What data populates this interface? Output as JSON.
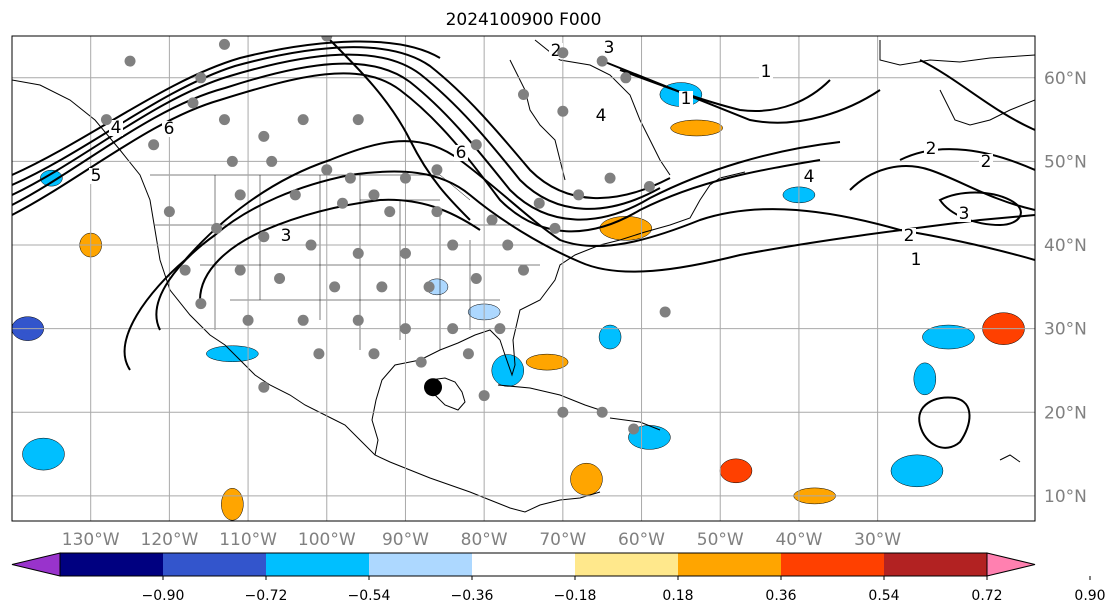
{
  "title": "2024100900 F000",
  "map": {
    "lon_range": [
      -140,
      -10
    ],
    "lat_range": [
      7,
      65
    ],
    "lon_ticks": [
      -130,
      -120,
      -110,
      -100,
      -90,
      -80,
      -70,
      -60,
      -50,
      -40,
      -30
    ],
    "lon_tick_labels": [
      "130°W",
      "120°W",
      "110°W",
      "100°W",
      "90°W",
      "80°W",
      "70°W",
      "60°W",
      "50°W",
      "40°W",
      "30°W"
    ],
    "lat_ticks": [
      60,
      50,
      40,
      30,
      20,
      10
    ],
    "lat_tick_labels": [
      "60°N",
      "50°N",
      "40°N",
      "30°N",
      "20°N",
      "10°N"
    ],
    "gridlines": true,
    "contour_labels": [
      "6",
      "5",
      "4",
      "3",
      "2",
      "1",
      "6",
      "4",
      "3",
      "2",
      "1",
      "4",
      "3",
      "2",
      "1",
      "2"
    ],
    "storm_marker": {
      "lon": -86.5,
      "lat": 23.0
    },
    "station_markers": [
      [
        -125,
        62
      ],
      [
        -116,
        60
      ],
      [
        -128,
        55
      ],
      [
        -122,
        52
      ],
      [
        -117,
        57
      ],
      [
        -113,
        55
      ],
      [
        -108,
        53
      ],
      [
        -103,
        55
      ],
      [
        -96,
        55
      ],
      [
        -112,
        50
      ],
      [
        -107,
        50
      ],
      [
        -100,
        49
      ],
      [
        -97,
        48
      ],
      [
        -94,
        46
      ],
      [
        -90,
        48
      ],
      [
        -86,
        49
      ],
      [
        -81,
        52
      ],
      [
        -75,
        58
      ],
      [
        -70,
        56
      ],
      [
        -111,
        46
      ],
      [
        -104,
        46
      ],
      [
        -98,
        45
      ],
      [
        -92,
        44
      ],
      [
        -86,
        44
      ],
      [
        -79,
        43
      ],
      [
        -73,
        45
      ],
      [
        -68,
        46
      ],
      [
        -64,
        48
      ],
      [
        -59,
        47
      ],
      [
        -120,
        44
      ],
      [
        -114,
        42
      ],
      [
        -108,
        41
      ],
      [
        -102,
        40
      ],
      [
        -96,
        39
      ],
      [
        -90,
        39
      ],
      [
        -84,
        40
      ],
      [
        -77,
        40
      ],
      [
        -71,
        42
      ],
      [
        -118,
        37
      ],
      [
        -111,
        37
      ],
      [
        -106,
        36
      ],
      [
        -99,
        35
      ],
      [
        -93,
        35
      ],
      [
        -87,
        35
      ],
      [
        -81,
        36
      ],
      [
        -75,
        37
      ],
      [
        -116,
        33
      ],
      [
        -110,
        31
      ],
      [
        -103,
        31
      ],
      [
        -96,
        31
      ],
      [
        -90,
        30
      ],
      [
        -84,
        30
      ],
      [
        -78,
        30
      ],
      [
        -101,
        27
      ],
      [
        -94,
        27
      ],
      [
        -88,
        26
      ],
      [
        -82,
        27
      ],
      [
        -108,
        23
      ],
      [
        -80,
        22
      ],
      [
        -70,
        20
      ],
      [
        -65,
        20
      ],
      [
        -57,
        32
      ],
      [
        -61,
        18
      ],
      [
        -113,
        64
      ],
      [
        -100,
        65
      ],
      [
        -70,
        63
      ],
      [
        -65,
        62
      ],
      [
        -62,
        60
      ]
    ],
    "shaded_spots": [
      {
        "lon": -135,
        "lat": 48,
        "value": -0.45
      },
      {
        "lon": -138,
        "lat": 30,
        "value": -0.6
      },
      {
        "lon": -136,
        "lat": 15,
        "value": -0.45
      },
      {
        "lon": -112,
        "lat": 27,
        "value": -0.4
      },
      {
        "lon": -64,
        "lat": 29,
        "value": -0.5
      },
      {
        "lon": -77,
        "lat": 25,
        "value": -0.4
      },
      {
        "lon": -72,
        "lat": 26,
        "value": 0.45
      },
      {
        "lon": -21,
        "lat": 29,
        "value": -0.45
      },
      {
        "lon": -24,
        "lat": 24,
        "value": -0.4
      },
      {
        "lon": -40,
        "lat": 46,
        "value": -0.45
      },
      {
        "lon": -59,
        "lat": 17,
        "value": -0.4
      },
      {
        "lon": -25,
        "lat": 13,
        "value": -0.4
      },
      {
        "lon": -86,
        "lat": 35,
        "value": -0.3
      },
      {
        "lon": -48,
        "lat": 13,
        "value": 0.6
      },
      {
        "lon": -14,
        "lat": 30,
        "value": 0.6
      },
      {
        "lon": -53,
        "lat": 54,
        "value": 0.45
      },
      {
        "lon": -130,
        "lat": 40,
        "value": 0.4
      },
      {
        "lon": -67,
        "lat": 12,
        "value": 0.4
      },
      {
        "lon": -38,
        "lat": 10,
        "value": 0.45
      },
      {
        "lon": -62,
        "lat": 42,
        "value": 0.4
      },
      {
        "lon": -112,
        "lat": 9,
        "value": 0.45
      },
      {
        "lon": -80,
        "lat": 32,
        "value": -0.3
      },
      {
        "lon": -55,
        "lat": 58,
        "value": -0.4
      }
    ]
  },
  "colorbar": {
    "colors": [
      "#9933cc",
      "#000080",
      "#3355cc",
      "#00bfff",
      "#add8ff",
      "#ffffff",
      "#ffe88c",
      "#ffa500",
      "#ff4000",
      "#b22222",
      "#ff80b0"
    ],
    "tick_labels": [
      "−0.90",
      "−0.72",
      "−0.54",
      "−0.36",
      "−0.18",
      "0.18",
      "0.36",
      "0.54",
      "0.72",
      "0.90"
    ]
  }
}
